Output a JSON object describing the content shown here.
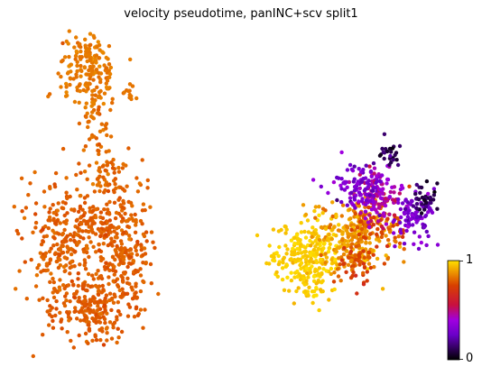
{
  "chart_data": {
    "type": "scatter",
    "title": "velocity pseudotime, panINC+scv split1",
    "xlabel": "",
    "ylabel": "",
    "grid": false,
    "axes_visible": false,
    "colormap": "gnuplot",
    "colorbar": {
      "min": 0,
      "max": 1,
      "tick_labels": [
        "1",
        "0"
      ]
    },
    "clusters": [
      {
        "name": "left",
        "value_range": [
          0.78,
          0.86
        ],
        "regions": [
          {
            "kind": "top-lobe",
            "points": 180
          },
          {
            "kind": "stem",
            "points": 90
          },
          {
            "kind": "bottom-body",
            "points": 760
          }
        ]
      },
      {
        "name": "right",
        "value_range": [
          0.0,
          1.0
        ],
        "regions": [
          {
            "kind": "yellow-lobe",
            "value": 0.97,
            "points": 260
          },
          {
            "kind": "orange-core",
            "value": 0.88,
            "points": 260
          },
          {
            "kind": "orange-red",
            "value": 0.75,
            "points": 120
          },
          {
            "kind": "magenta",
            "value": 0.45,
            "points": 120
          },
          {
            "kind": "purple",
            "value": 0.3,
            "points": 180
          },
          {
            "kind": "dark-purple",
            "value": 0.1,
            "points": 60
          }
        ]
      }
    ]
  }
}
